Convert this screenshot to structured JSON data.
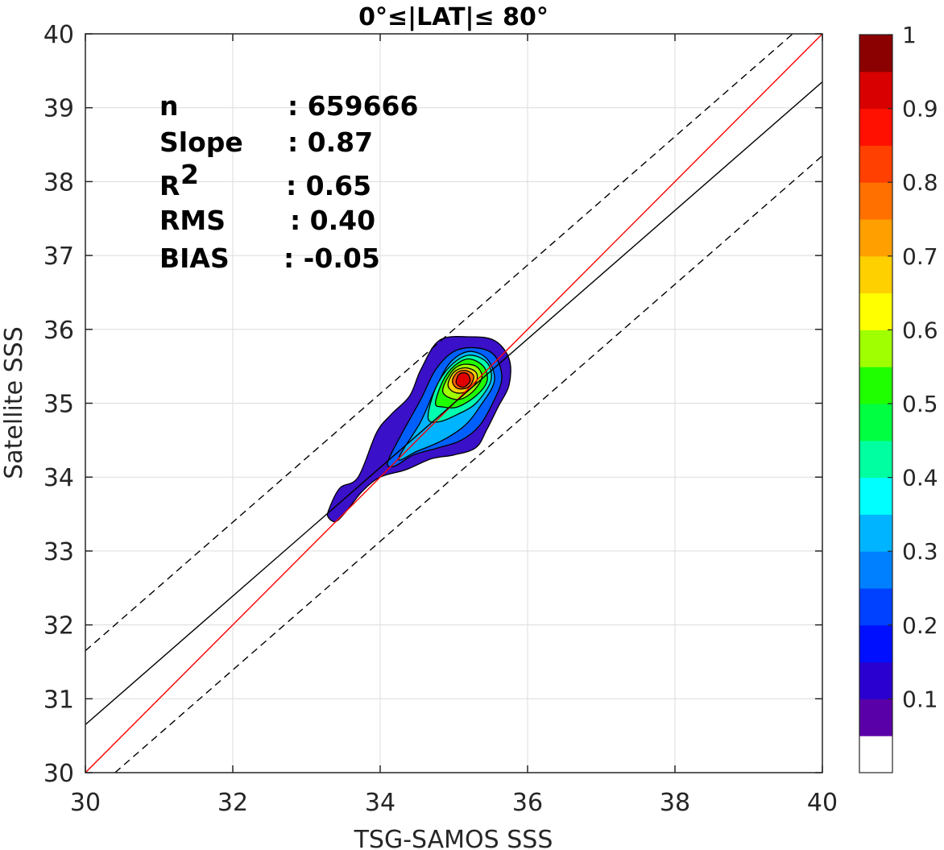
{
  "chart_data": {
    "type": "contour",
    "title": "0°≤|LAT|≤ 80°",
    "xlabel": "TSG-SAMOS SSS",
    "ylabel": "Satellite SSS",
    "xlim": [
      30,
      40
    ],
    "ylim": [
      30,
      40
    ],
    "xticks": [
      "30",
      "32",
      "34",
      "36",
      "38",
      "40"
    ],
    "yticks": [
      "30",
      "31",
      "32",
      "33",
      "34",
      "35",
      "36",
      "37",
      "38",
      "39",
      "40"
    ],
    "grid": true,
    "stats": [
      {
        "label": "n",
        "value": ": 659666"
      },
      {
        "label": "Slope",
        "value": ": 0.87"
      },
      {
        "label": "R",
        "sup": "2",
        "value": ": 0.65"
      },
      {
        "label": "RMS",
        "value": ": 0.40"
      },
      {
        "label": "BIAS",
        "value": ": -0.05"
      }
    ],
    "lines": [
      {
        "kind": "one-to-one",
        "color": "#ff0000",
        "slope": 1,
        "intercept": 0
      },
      {
        "kind": "regression",
        "color": "#000000",
        "slope": 0.87,
        "intercept": 4.55
      },
      {
        "kind": "regression-offset-upper",
        "color": "#000000",
        "dash": true,
        "slope": 0.87,
        "intercept": 5.55
      },
      {
        "kind": "regression-offset-lower",
        "color": "#000000",
        "dash": true,
        "slope": 0.87,
        "intercept": 3.55
      }
    ],
    "density_peak": {
      "x": 35.15,
      "y": 35.3
    },
    "colorbar": {
      "range": [
        0,
        1
      ],
      "ticks": [
        "0.1",
        "0.2",
        "0.3",
        "0.4",
        "0.5",
        "0.6",
        "0.7",
        "0.8",
        "0.9",
        "1"
      ],
      "colors": [
        "#ffffff",
        "#5a00a8",
        "#2a00d0",
        "#0010ff",
        "#0040ff",
        "#0080ff",
        "#00b4ff",
        "#00ffff",
        "#00ffa0",
        "#00ff40",
        "#20ff00",
        "#a0ff00",
        "#ffff00",
        "#ffd000",
        "#ffa000",
        "#ff7000",
        "#ff4000",
        "#ff1000",
        "#d80000",
        "#8b0000"
      ]
    },
    "contour_levels": [
      {
        "level": 0.05,
        "color": "#3a10c8",
        "path": [
          [
            33.3,
            33.55
          ],
          [
            33.45,
            33.85
          ],
          [
            33.7,
            34.0
          ],
          [
            33.95,
            34.6
          ],
          [
            34.15,
            34.85
          ],
          [
            34.4,
            35.1
          ],
          [
            34.55,
            35.45
          ],
          [
            34.8,
            35.85
          ],
          [
            35.2,
            35.9
          ],
          [
            35.55,
            35.85
          ],
          [
            35.75,
            35.6
          ],
          [
            35.75,
            35.25
          ],
          [
            35.6,
            34.95
          ],
          [
            35.45,
            34.65
          ],
          [
            35.3,
            34.4
          ],
          [
            35.0,
            34.3
          ],
          [
            34.7,
            34.25
          ],
          [
            34.35,
            34.1
          ],
          [
            34.0,
            34.0
          ],
          [
            33.75,
            33.8
          ],
          [
            33.55,
            33.55
          ],
          [
            33.4,
            33.4
          ],
          [
            33.3,
            33.45
          ]
        ]
      },
      {
        "level": 0.2,
        "color": "#0060ff",
        "path": [
          [
            34.1,
            34.2
          ],
          [
            34.3,
            34.6
          ],
          [
            34.55,
            35.05
          ],
          [
            34.75,
            35.45
          ],
          [
            35.0,
            35.7
          ],
          [
            35.3,
            35.75
          ],
          [
            35.55,
            35.65
          ],
          [
            35.65,
            35.35
          ],
          [
            35.55,
            35.05
          ],
          [
            35.35,
            34.7
          ],
          [
            35.1,
            34.5
          ],
          [
            34.8,
            34.4
          ],
          [
            34.45,
            34.3
          ],
          [
            34.2,
            34.15
          ]
        ]
      },
      {
        "level": 0.3,
        "color": "#00b4ff",
        "path": [
          [
            34.25,
            34.25
          ],
          [
            34.55,
            34.75
          ],
          [
            34.75,
            35.2
          ],
          [
            34.95,
            35.55
          ],
          [
            35.2,
            35.7
          ],
          [
            35.45,
            35.6
          ],
          [
            35.55,
            35.3
          ],
          [
            35.35,
            34.95
          ],
          [
            35.15,
            34.7
          ],
          [
            34.85,
            34.5
          ],
          [
            34.5,
            34.35
          ]
        ]
      },
      {
        "level": 0.4,
        "color": "#00ffb0",
        "path": [
          [
            34.65,
            34.8
          ],
          [
            34.75,
            35.2
          ],
          [
            34.95,
            35.5
          ],
          [
            35.2,
            35.65
          ],
          [
            35.45,
            35.55
          ],
          [
            35.5,
            35.3
          ],
          [
            35.3,
            35.0
          ],
          [
            35.05,
            34.85
          ],
          [
            34.8,
            34.75
          ]
        ]
      },
      {
        "level": 0.5,
        "color": "#20ff00",
        "path": [
          [
            34.75,
            35.0
          ],
          [
            34.85,
            35.3
          ],
          [
            35.0,
            35.5
          ],
          [
            35.2,
            35.6
          ],
          [
            35.4,
            35.5
          ],
          [
            35.45,
            35.3
          ],
          [
            35.3,
            35.1
          ],
          [
            35.05,
            34.95
          ],
          [
            34.85,
            34.95
          ]
        ]
      },
      {
        "level": 0.6,
        "color": "#a0ff00",
        "path": [
          [
            34.85,
            35.15
          ],
          [
            34.95,
            35.4
          ],
          [
            35.1,
            35.52
          ],
          [
            35.3,
            35.5
          ],
          [
            35.38,
            35.35
          ],
          [
            35.25,
            35.15
          ],
          [
            35.05,
            35.05
          ]
        ]
      },
      {
        "level": 0.7,
        "color": "#ffd000",
        "path": [
          [
            34.92,
            35.25
          ],
          [
            35.0,
            35.42
          ],
          [
            35.15,
            35.48
          ],
          [
            35.3,
            35.42
          ],
          [
            35.3,
            35.28
          ],
          [
            35.15,
            35.15
          ],
          [
            35.0,
            35.15
          ]
        ]
      },
      {
        "level": 0.8,
        "color": "#ff6000",
        "path": [
          [
            34.98,
            35.3
          ],
          [
            35.05,
            35.42
          ],
          [
            35.18,
            35.44
          ],
          [
            35.27,
            35.36
          ],
          [
            35.2,
            35.22
          ],
          [
            35.05,
            35.2
          ]
        ]
      },
      {
        "level": 0.9,
        "color": "#e00000",
        "path": [
          [
            35.03,
            35.3
          ],
          [
            35.08,
            35.4
          ],
          [
            35.18,
            35.4
          ],
          [
            35.22,
            35.3
          ],
          [
            35.14,
            35.22
          ],
          [
            35.06,
            35.24
          ]
        ]
      }
    ]
  }
}
